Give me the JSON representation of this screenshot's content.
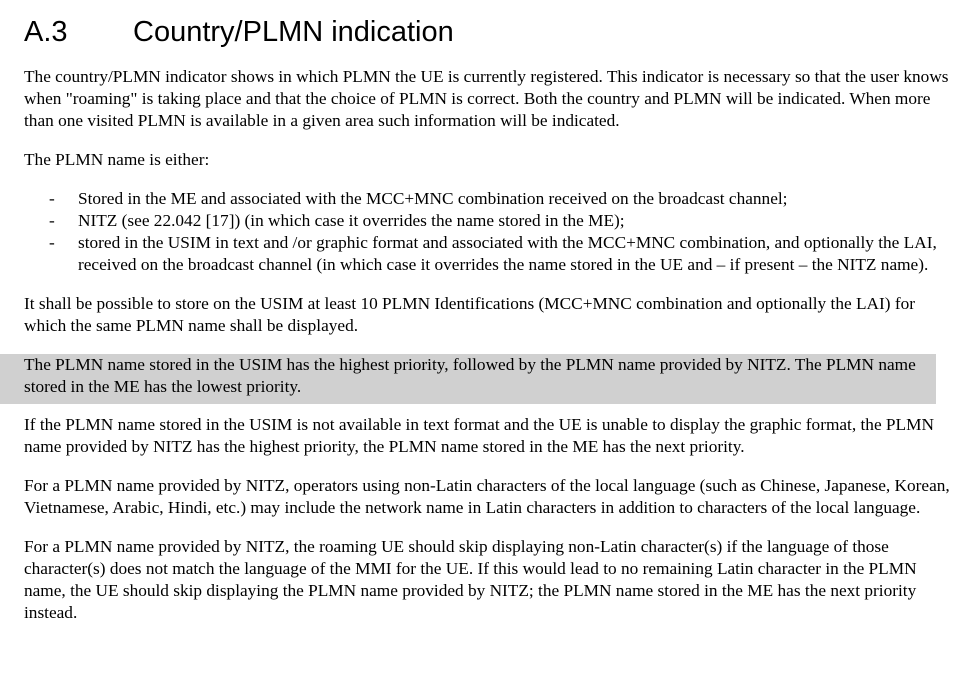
{
  "section": {
    "number": "A.3",
    "title": "Country/PLMN indication"
  },
  "paragraphs": {
    "intro": "The country/PLMN indicator shows in which PLMN the UE is currently registered. This indicator is necessary so that the user knows when \"roaming\" is taking place and that the choice of PLMN is correct. Both the country and PLMN will be indicated. When more than one visited PLMN is available in a given area such information will be indicated.",
    "name_is_either": "The PLMN name is either:",
    "list": [
      {
        "dash": "-",
        "text": "Stored in the ME and associated with the MCC+MNC combination received on the broadcast channel;"
      },
      {
        "dash": "-",
        "text": "NITZ (see 22.042 [17]) (in which case it overrides the name stored in the ME);"
      },
      {
        "dash": "-",
        "text": "stored in the USIM in text and /or graphic format and associated with the MCC+MNC combination, and optionally the LAI, received on the broadcast channel (in which case it overrides the name stored in the UE and – if present – the NITZ name)."
      }
    ],
    "usim_storage": "It shall be possible to store on the USIM at least 10 PLMN Identifications (MCC+MNC combination and optionally the LAI) for which the same PLMN name shall be displayed.",
    "priority_highlighted": "The PLMN name stored in the USIM has the highest priority, followed by the PLMN name provided by NITZ. The PLMN name stored in the ME has the lowest priority.",
    "usim_unavailable": "If the PLMN name stored in the USIM is not available in text format and the UE is unable to display the graphic format, the PLMN name provided by NITZ has the highest priority, the PLMN name stored in the ME has the next priority.",
    "non_latin_include": "For a PLMN name provided by NITZ, operators using non-Latin characters of the local language (such as Chinese, Japanese, Korean, Vietnamese, Arabic, Hindi, etc.) may include the network name in Latin characters in addition to characters of the local language.",
    "non_latin_skip": "For a PLMN name provided by NITZ, the roaming UE should skip displaying non-Latin character(s) if the language of those character(s) does not match the language of the MMI for the UE. If this would lead to no remaining Latin character in the PLMN name, the UE should skip displaying the PLMN name provided by NITZ; the PLMN name stored in the ME has the next priority instead."
  },
  "colors": {
    "highlight": "#d0d0d0",
    "text": "#000000"
  }
}
